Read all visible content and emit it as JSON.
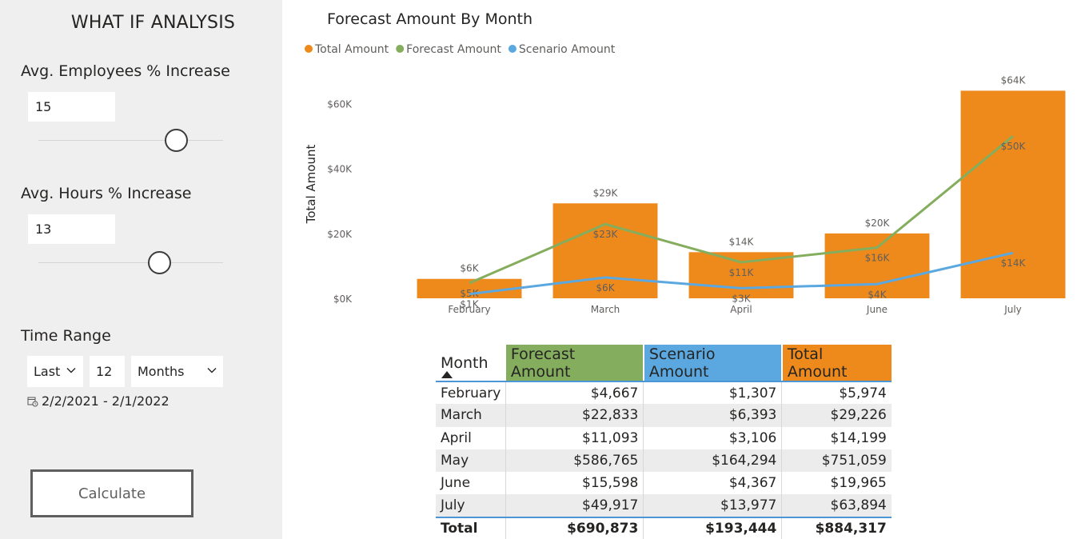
{
  "panel": {
    "title": "WHAT IF ANALYSIS",
    "employees": {
      "label": "Avg. Employees % Increase",
      "value": "15",
      "slider_level": 0.75
    },
    "hours": {
      "label": "Avg. Hours % Increase",
      "value": "13",
      "slider_level": 0.66
    },
    "time_range": {
      "label": "Time Range",
      "direction": "Last",
      "count": "12",
      "unit": "Months",
      "dates": "2/2/2021 - 2/1/2022"
    },
    "calculate_label": "Calculate"
  },
  "chart_data": {
    "type": "bar",
    "title": "Forecast Amount By Month",
    "ylabel": "Total Amount",
    "xlabel": "",
    "ylim": [
      0,
      64000
    ],
    "yticks": [
      0,
      20000,
      40000,
      60000
    ],
    "ytick_labels": [
      "$0K",
      "$20K",
      "$40K",
      "$60K"
    ],
    "categories": [
      "February",
      "March",
      "April",
      "June",
      "July"
    ],
    "legend_position": "top-left",
    "grid": false,
    "series": [
      {
        "name": "Total Amount",
        "kind": "bar",
        "color": "#ee8a1c",
        "values": [
          5974,
          29226,
          14199,
          19965,
          63894
        ],
        "labels": [
          "$6K",
          "$29K",
          "$14K",
          "$20K",
          "$64K"
        ]
      },
      {
        "name": "Forecast Amount",
        "kind": "line",
        "color": "#84ad5e",
        "values": [
          4667,
          22833,
          11093,
          15598,
          49917
        ],
        "labels": [
          "$5K",
          "$23K",
          "$11K",
          "$16K",
          "$50K"
        ]
      },
      {
        "name": "Scenario Amount",
        "kind": "line",
        "color": "#5ba8e0",
        "values": [
          1307,
          6393,
          3106,
          4367,
          13977
        ],
        "labels": [
          "$1K",
          "$6K",
          "$3K",
          "$4K",
          "$14K"
        ]
      }
    ]
  },
  "table": {
    "headers": {
      "month": "Month",
      "forecast": "Forecast Amount",
      "scenario": "Scenario Amount",
      "total": "Total Amount"
    },
    "colors": {
      "forecast": "#84ad5e",
      "scenario": "#5ba8e0",
      "total": "#ee8a1c"
    },
    "rows": [
      {
        "month": "February",
        "forecast": "$4,667",
        "scenario": "$1,307",
        "total": "$5,974"
      },
      {
        "month": "March",
        "forecast": "$22,833",
        "scenario": "$6,393",
        "total": "$29,226"
      },
      {
        "month": "April",
        "forecast": "$11,093",
        "scenario": "$3,106",
        "total": "$14,199"
      },
      {
        "month": "May",
        "forecast": "$586,765",
        "scenario": "$164,294",
        "total": "$751,059"
      },
      {
        "month": "June",
        "forecast": "$15,598",
        "scenario": "$4,367",
        "total": "$19,965"
      },
      {
        "month": "July",
        "forecast": "$49,917",
        "scenario": "$13,977",
        "total": "$63,894"
      }
    ],
    "total_row": {
      "month": "Total",
      "forecast": "$690,873",
      "scenario": "$193,444",
      "total": "$884,317"
    }
  }
}
